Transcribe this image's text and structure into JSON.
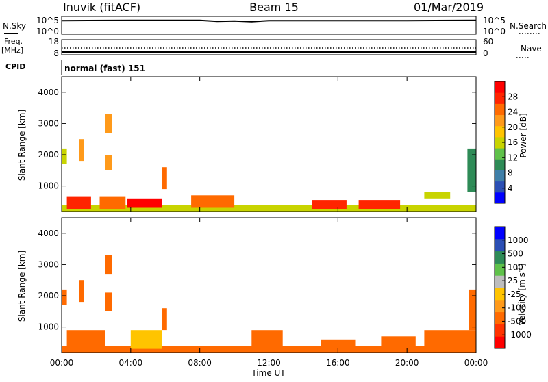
{
  "header": {
    "station": "Inuvik (fitACF)",
    "beam": "Beam 15",
    "date": "01/Mar/2019"
  },
  "panel_nsky": {
    "left_label": "N.Sky",
    "right_label": "N.Search",
    "left_ticks": [
      "10^5",
      "10^0"
    ],
    "right_ticks": [
      "10^5",
      "10^0"
    ]
  },
  "panel_freq": {
    "left_label_top": "Freq.",
    "left_label_unit": "[MHz]",
    "left_ticks": [
      "18",
      "8"
    ],
    "right_label": "Nave",
    "right_ticks": [
      "60",
      "0"
    ]
  },
  "panel_cpid": {
    "label": "CPID",
    "program": "normal (fast) 151"
  },
  "power_panel": {
    "ylabel": "Slant Range [km]",
    "yticks": [
      "4000",
      "3000",
      "2000",
      "1000"
    ],
    "colorbar_label": "Power [dB]",
    "colorbar_ticks": [
      "28",
      "24",
      "20",
      "16",
      "12",
      "8",
      "4"
    ]
  },
  "velocity_panel": {
    "ylabel": "Slant Range [km]",
    "yticks": [
      "4000",
      "3000",
      "2000",
      "1000"
    ],
    "colorbar_label": "Velocity [m s",
    "colorbar_label_sup": "-1",
    "colorbar_label_end": "]",
    "colorbar_ticks": [
      "1000",
      "500",
      "100",
      "25",
      "-25",
      "-100",
      "-500",
      "-1000"
    ]
  },
  "xaxis": {
    "label": "Time UT",
    "ticks": [
      "00:00",
      "04:00",
      "08:00",
      "12:00",
      "16:00",
      "20:00",
      "00:00"
    ]
  },
  "colors": {
    "power_scale": [
      "#0000ff",
      "#2b4fb5",
      "#3f7fa8",
      "#2e8b57",
      "#5fc14a",
      "#c8d400",
      "#ffc400",
      "#ff9a1a",
      "#ff6a00",
      "#ff2400",
      "#ff0000"
    ],
    "velocity_scale": [
      "#ff0000",
      "#ff3300",
      "#ff6a00",
      "#ff9a1a",
      "#ffc400",
      "#bdbdbd",
      "#5fc14a",
      "#2e8b57",
      "#2b4fb5",
      "#0000ff"
    ]
  },
  "chart_data": [
    {
      "type": "line",
      "name": "N.Sky / N.Search",
      "x": [
        0,
        4,
        8,
        9,
        10,
        11,
        12,
        16,
        20,
        24
      ],
      "y_log10": [
        3.8,
        3.9,
        3.9,
        3.6,
        3.7,
        3.5,
        3.8,
        3.8,
        3.8,
        3.9
      ],
      "xlim_hours": [
        0,
        24
      ]
    },
    {
      "type": "line",
      "name": "Freq / Nave",
      "x": [
        0,
        24
      ],
      "freq_mhz": [
        10,
        10
      ],
      "nave": [
        20,
        20
      ]
    },
    {
      "type": "heatmap",
      "name": "Power",
      "xlabel": "Time UT",
      "ylabel": "Slant Range [km]",
      "xlim_hours": [
        0,
        24
      ],
      "ylim_km": [
        180,
        4500
      ],
      "clim_db": [
        0,
        30
      ],
      "patches": [
        {
          "t0": 0.0,
          "t1": 24.0,
          "r0": 180,
          "r1": 400,
          "v": 14
        },
        {
          "t0": 0.3,
          "t1": 1.7,
          "r0": 250,
          "r1": 650,
          "v": 26
        },
        {
          "t0": 2.2,
          "t1": 3.7,
          "r0": 250,
          "r1": 650,
          "v": 24
        },
        {
          "t0": 3.8,
          "t1": 5.8,
          "r0": 300,
          "r1": 600,
          "v": 28
        },
        {
          "t0": 7.5,
          "t1": 10.0,
          "r0": 300,
          "r1": 700,
          "v": 24
        },
        {
          "t0": 14.5,
          "t1": 16.5,
          "r0": 250,
          "r1": 550,
          "v": 26
        },
        {
          "t0": 17.2,
          "t1": 19.6,
          "r0": 250,
          "r1": 550,
          "v": 27
        },
        {
          "t0": 21.0,
          "t1": 22.5,
          "r0": 600,
          "r1": 800,
          "v": 16
        },
        {
          "t0": 23.5,
          "t1": 24.0,
          "r0": 800,
          "r1": 2200,
          "v": 10
        },
        {
          "t0": 1.0,
          "t1": 1.3,
          "r0": 1800,
          "r1": 2500,
          "v": 20
        },
        {
          "t0": 2.5,
          "t1": 2.9,
          "r0": 1500,
          "r1": 2000,
          "v": 20
        },
        {
          "t0": 2.5,
          "t1": 2.9,
          "r0": 2700,
          "r1": 3300,
          "v": 20
        },
        {
          "t0": 5.8,
          "t1": 6.1,
          "r0": 900,
          "r1": 1600,
          "v": 22
        },
        {
          "t0": 0.0,
          "t1": 0.3,
          "r0": 1700,
          "r1": 2200,
          "v": 14
        }
      ]
    },
    {
      "type": "heatmap",
      "name": "Velocity",
      "xlabel": "Time UT",
      "ylabel": "Slant Range [km]",
      "xlim_hours": [
        0,
        24
      ],
      "ylim_km": [
        180,
        4500
      ],
      "clim_ms": [
        -1000,
        1000
      ],
      "patches": [
        {
          "t0": 0.0,
          "t1": 24.0,
          "r0": 180,
          "r1": 400,
          "v": -100
        },
        {
          "t0": 0.3,
          "t1": 2.5,
          "r0": 250,
          "r1": 900,
          "v": -200
        },
        {
          "t0": 4.0,
          "t1": 5.8,
          "r0": 300,
          "r1": 900,
          "v": 0
        },
        {
          "t0": 11.0,
          "t1": 12.8,
          "r0": 300,
          "r1": 900,
          "v": -150
        },
        {
          "t0": 15.0,
          "t1": 17.0,
          "r0": 250,
          "r1": 600,
          "v": -200
        },
        {
          "t0": 18.5,
          "t1": 20.5,
          "r0": 250,
          "r1": 700,
          "v": -150
        },
        {
          "t0": 21.0,
          "t1": 24.0,
          "r0": 400,
          "r1": 900,
          "v": -300
        },
        {
          "t0": 23.6,
          "t1": 24.0,
          "r0": 900,
          "r1": 2200,
          "v": -200
        },
        {
          "t0": 0.0,
          "t1": 0.3,
          "r0": 1700,
          "r1": 2200,
          "v": -200
        },
        {
          "t0": 1.0,
          "t1": 1.3,
          "r0": 1800,
          "r1": 2500,
          "v": -120
        },
        {
          "t0": 2.5,
          "t1": 2.9,
          "r0": 1500,
          "r1": 2100,
          "v": -150
        },
        {
          "t0": 2.5,
          "t1": 2.9,
          "r0": 2700,
          "r1": 3300,
          "v": -150
        },
        {
          "t0": 5.8,
          "t1": 6.1,
          "r0": 900,
          "r1": 1600,
          "v": -120
        }
      ]
    }
  ]
}
